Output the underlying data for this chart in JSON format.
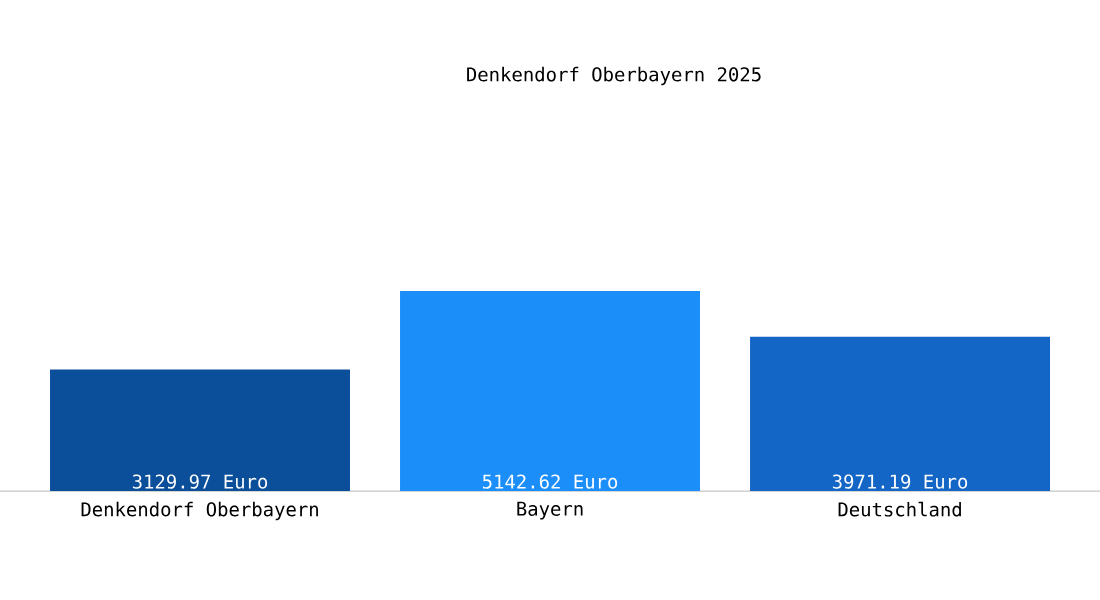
{
  "chart_data": {
    "type": "bar",
    "title": "Denkendorf Oberbayern 2025",
    "categories": [
      "Denkendorf Oberbayern",
      "Bayern",
      "Deutschland"
    ],
    "values": [
      3129.97,
      5142.62,
      3971.19
    ],
    "value_labels": [
      "3129.97 Euro",
      "5142.62 Euro",
      "3971.19 Euro"
    ],
    "colors": [
      "#0b4f9a",
      "#1c8ef9",
      "#1466c6"
    ]
  }
}
